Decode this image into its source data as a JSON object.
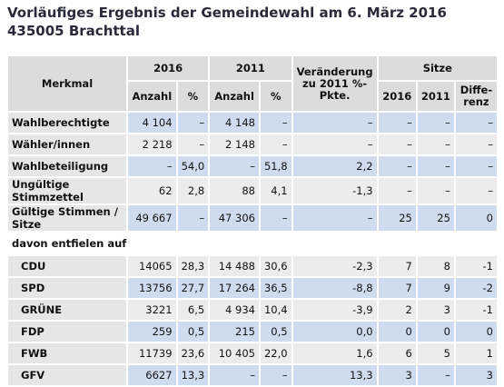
{
  "header": {
    "title_line1": "Vorläufiges Ergebnis der Gemeindewahl am 6. März 2016",
    "title_line2": "435005 Brachttal"
  },
  "table": {
    "columns": {
      "merkmal": "Merkmal",
      "y2016": "2016",
      "y2011": "2011",
      "change": "Veränderung zu 2011 %-Pkte.",
      "seats": "Sitze"
    },
    "subcolumns": [
      "Anzahl",
      "%",
      "Anzahl",
      "%",
      "2016",
      "2011",
      "Diffe- renz"
    ],
    "rows": [
      [
        "Wahlberechtigte",
        "4 104",
        "–",
        "4 148",
        "–",
        "–",
        "–",
        "–",
        "–"
      ],
      [
        "Wähler/innen",
        "2 218",
        "–",
        "2 148",
        "–",
        "–",
        "–",
        "–",
        "–"
      ],
      [
        "Wahlbeteiligung",
        "–",
        "54,0",
        "–",
        "51,8",
        "2,2",
        "–",
        "–",
        "–"
      ],
      [
        "Ungültige Stimmzettel",
        "62",
        "2,8",
        "88",
        "4,1",
        "-1,3",
        "–",
        "–",
        "–"
      ],
      [
        "Gültige Stimmen / Sitze",
        "49 667",
        "–",
        "47 306",
        "–",
        "–",
        "25",
        "25",
        "0"
      ],
      [
        "davon entfielen auf"
      ],
      [
        "CDU",
        "14065",
        "28,3",
        "14 488",
        "30,6",
        "-2,3",
        "7",
        "8",
        "-1"
      ],
      [
        "SPD",
        "13756",
        "27,7",
        "17 264",
        "36,5",
        "-8,8",
        "7",
        "9",
        "-2"
      ],
      [
        "GRÜNE",
        "3221",
        "6,5",
        "4 934",
        "10,4",
        "-3,9",
        "2",
        "3",
        "-1"
      ],
      [
        "FDP",
        "259",
        "0,5",
        "215",
        "0,5",
        "0,0",
        "0",
        "0",
        "0"
      ],
      [
        "FWB",
        "11739",
        "23,6",
        "10 405",
        "22,0",
        "1,6",
        "6",
        "5",
        "1"
      ],
      [
        "GFV",
        "6627",
        "13,3",
        "–",
        "–",
        "13,3",
        "3",
        "–",
        "3"
      ]
    ]
  }
}
